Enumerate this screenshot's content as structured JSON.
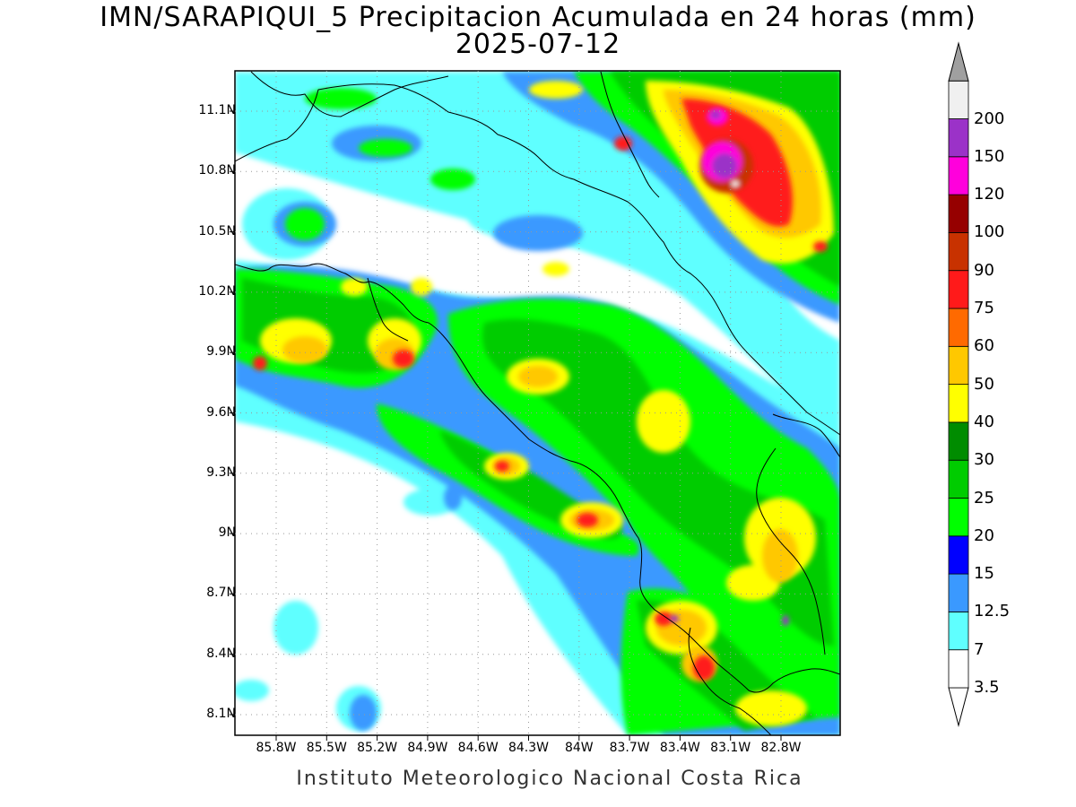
{
  "title": {
    "line1": "IMN/SARAPIQUI_5 Precipitacion Acumulada en 24 horas (mm)",
    "line2": "2025-07-12"
  },
  "map": {
    "lat_labels": [
      "11.1N",
      "10.8N",
      "10.5N",
      "10.2N",
      "9.9N",
      "9.6N",
      "9.3N",
      "9N",
      "8.7N",
      "8.4N",
      "8.1N"
    ],
    "lon_labels": [
      "85.8W",
      "85.5W",
      "85.2W",
      "84.9W",
      "84.6W",
      "84.3W",
      "84W",
      "83.7W",
      "83.4W",
      "83.1W",
      "82.8W"
    ]
  },
  "colorbar": {
    "labels": [
      "3.5",
      "7",
      "12.5",
      "15",
      "20",
      "25",
      "30",
      "40",
      "50",
      "60",
      "75",
      "90",
      "100",
      "120",
      "150",
      "200"
    ],
    "colors": [
      "#ffffff",
      "#5fffff",
      "#3a99ff",
      "#0000ff",
      "#00ff00",
      "#00cc00",
      "#008c00",
      "#ffff00",
      "#ffc800",
      "#ff6a00",
      "#ff1a1a",
      "#c83200",
      "#960000",
      "#ff00dc",
      "#9b32c8",
      "#f0f0f0"
    ],
    "over_color": "#a0a0a0",
    "under_color": "#ffffff"
  },
  "footer": "Instituto Meteorologico Nacional Costa Rica"
}
